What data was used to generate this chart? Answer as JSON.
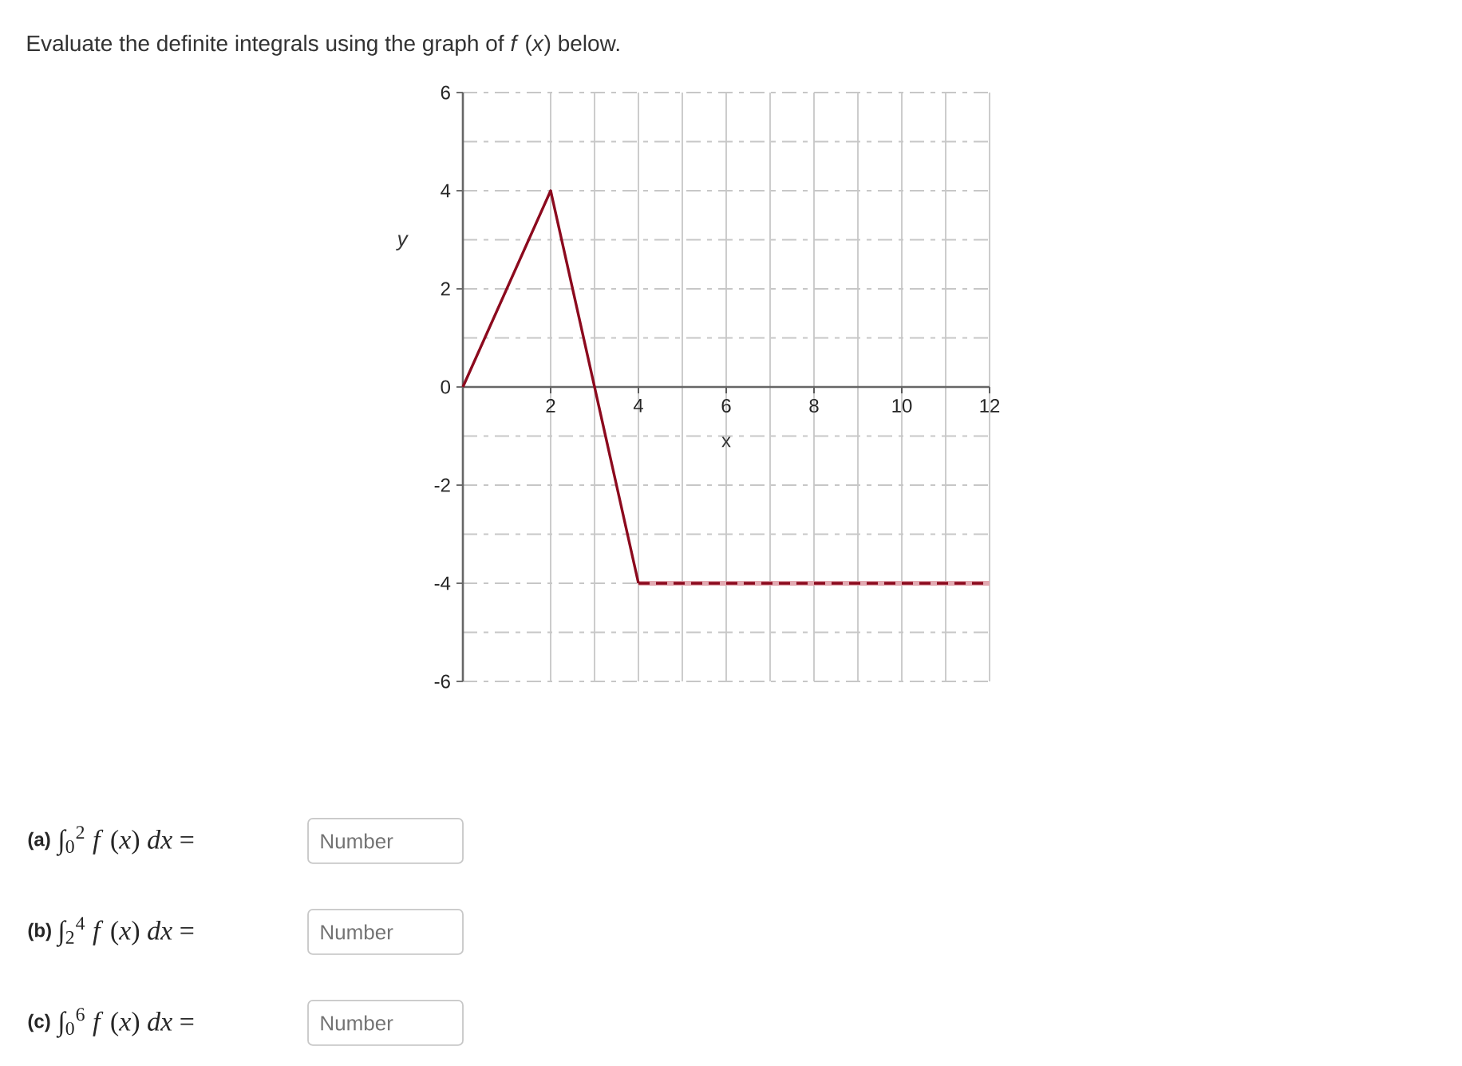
{
  "chart_data": {
    "type": "line",
    "title": "Evaluate the definite integrals using the graph of *f* (*x*) below.",
    "xlabel": "x",
    "ylabel": "y",
    "series": [
      {
        "color": "#e2a9b1",
        "line_style": "solid",
        "x": [
          4,
          12
        ],
        "values": [
          -4,
          -4
        ]
      },
      {
        "color": "#8c0a1e",
        "line_style": "solid",
        "x": [
          0,
          2,
          3,
          4
        ],
        "values": [
          0,
          4,
          0,
          -4
        ]
      },
      {
        "color": "#8c0a1e",
        "line_style": "dashed",
        "x": [
          4,
          12
        ],
        "values": [
          -4,
          -4
        ]
      }
    ],
    "xlim": [
      0,
      12
    ],
    "ylim": [
      -6,
      6
    ],
    "xticks": [
      2,
      4,
      6,
      8,
      10,
      12
    ],
    "yticks": [
      -6,
      -4,
      -2,
      0,
      2,
      4,
      6
    ],
    "grid": true,
    "annotations": [
      "(a)",
      "∫$_{0}$$^{2}$ *f* (*x*) *dx* =",
      "Number",
      "(b)",
      "∫$_{2}$$^{4}$ *f* (*x*) *dx* =",
      "Number",
      "(c)",
      "∫$_{0}$$^{6}$ *f* (*x*) *dx* =",
      "Number"
    ]
  }
}
